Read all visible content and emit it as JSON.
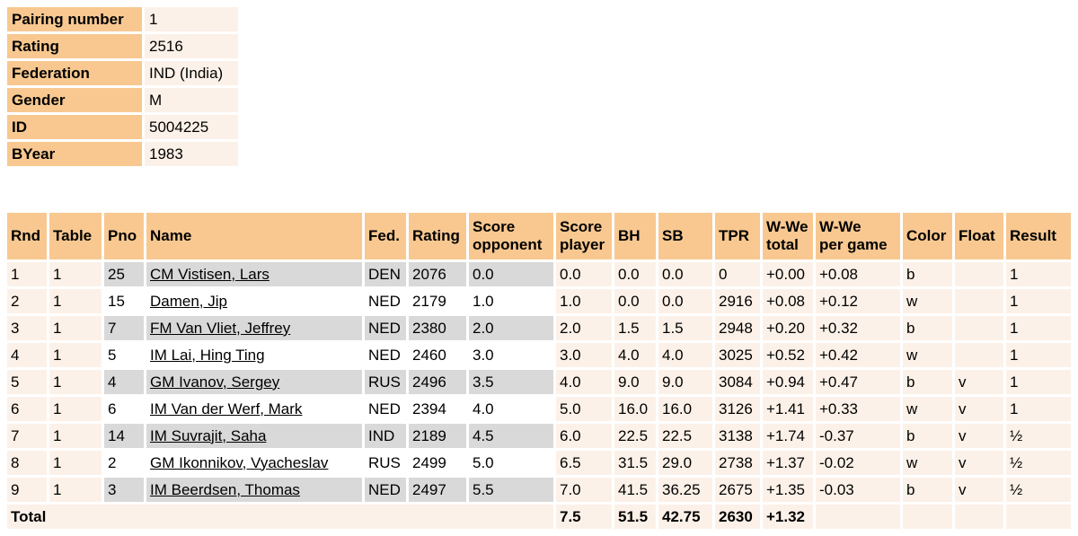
{
  "colors": {
    "header_bg": "#F8C890",
    "row_bg": "#FCF1E8",
    "alt_gray": "#D9D9D9",
    "page_bg": "#FFFFFF",
    "text": "#000000"
  },
  "player_info": {
    "rows": [
      {
        "label": "Pairing number",
        "value": "1"
      },
      {
        "label": "Rating",
        "value": "2516"
      },
      {
        "label": "Federation",
        "value": "IND (India)"
      },
      {
        "label": "Gender",
        "value": "M"
      },
      {
        "label": "ID",
        "value": "5004225"
      },
      {
        "label": "BYear",
        "value": "1983"
      }
    ]
  },
  "results_table": {
    "headers": {
      "rnd": "Rnd",
      "table": "Table",
      "pno": "Pno",
      "name": "Name",
      "fed": "Fed.",
      "rating": "Rating",
      "score_opponent": "Score\nopponent",
      "score_player": "Score\nplayer",
      "bh": "BH",
      "sb": "SB",
      "tpr": "TPR",
      "wwe_total": "W-We\ntotal",
      "wwe_per_game": "W-We\nper game",
      "color": "Color",
      "float": "Float",
      "result": "Result"
    },
    "rows": [
      {
        "rnd": "1",
        "table": "1",
        "pno": "25",
        "name": "CM Vistisen, Lars",
        "fed": "DEN",
        "rating": "2076",
        "score_opponent": "0.0",
        "score_player": "0.0",
        "bh": "0.0",
        "sb": "0.0",
        "tpr": "0",
        "wwe_total": "+0.00",
        "wwe_per_game": "+0.08",
        "color": "b",
        "float": "",
        "result": "1"
      },
      {
        "rnd": "2",
        "table": "1",
        "pno": "15",
        "name": "Damen, Jip",
        "fed": "NED",
        "rating": "2179",
        "score_opponent": "1.0",
        "score_player": "1.0",
        "bh": "0.0",
        "sb": "0.0",
        "tpr": "2916",
        "wwe_total": "+0.08",
        "wwe_per_game": "+0.12",
        "color": "w",
        "float": "",
        "result": "1"
      },
      {
        "rnd": "3",
        "table": "1",
        "pno": "7",
        "name": "FM Van Vliet, Jeffrey",
        "fed": "NED",
        "rating": "2380",
        "score_opponent": "2.0",
        "score_player": "2.0",
        "bh": "1.5",
        "sb": "1.5",
        "tpr": "2948",
        "wwe_total": "+0.20",
        "wwe_per_game": "+0.32",
        "color": "b",
        "float": "",
        "result": "1"
      },
      {
        "rnd": "4",
        "table": "1",
        "pno": "5",
        "name": "IM Lai, Hing Ting",
        "fed": "NED",
        "rating": "2460",
        "score_opponent": "3.0",
        "score_player": "3.0",
        "bh": "4.0",
        "sb": "4.0",
        "tpr": "3025",
        "wwe_total": "+0.52",
        "wwe_per_game": "+0.42",
        "color": "w",
        "float": "",
        "result": "1"
      },
      {
        "rnd": "5",
        "table": "1",
        "pno": "4",
        "name": "GM Ivanov, Sergey",
        "fed": "RUS",
        "rating": "2496",
        "score_opponent": "3.5",
        "score_player": "4.0",
        "bh": "9.0",
        "sb": "9.0",
        "tpr": "3084",
        "wwe_total": "+0.94",
        "wwe_per_game": "+0.47",
        "color": "b",
        "float": "v",
        "result": "1"
      },
      {
        "rnd": "6",
        "table": "1",
        "pno": "6",
        "name": "IM Van der Werf, Mark",
        "fed": "NED",
        "rating": "2394",
        "score_opponent": "4.0",
        "score_player": "5.0",
        "bh": "16.0",
        "sb": "16.0",
        "tpr": "3126",
        "wwe_total": "+1.41",
        "wwe_per_game": "+0.33",
        "color": "w",
        "float": "v",
        "result": "1"
      },
      {
        "rnd": "7",
        "table": "1",
        "pno": "14",
        "name": "IM Suvrajit, Saha",
        "fed": "IND",
        "rating": "2189",
        "score_opponent": "4.5",
        "score_player": "6.0",
        "bh": "22.5",
        "sb": "22.5",
        "tpr": "3138",
        "wwe_total": "+1.74",
        "wwe_per_game": "-0.37",
        "color": "b",
        "float": "v",
        "result": "½"
      },
      {
        "rnd": "8",
        "table": "1",
        "pno": "2",
        "name": "GM Ikonnikov, Vyacheslav",
        "fed": "RUS",
        "rating": "2499",
        "score_opponent": "5.0",
        "score_player": "6.5",
        "bh": "31.5",
        "sb": "29.0",
        "tpr": "2738",
        "wwe_total": "+1.37",
        "wwe_per_game": "-0.02",
        "color": "w",
        "float": "v",
        "result": "½"
      },
      {
        "rnd": "9",
        "table": "1",
        "pno": "3",
        "name": "IM Beerdsen, Thomas",
        "fed": "NED",
        "rating": "2497",
        "score_opponent": "5.5",
        "score_player": "7.0",
        "bh": "41.5",
        "sb": "36.25",
        "tpr": "2675",
        "wwe_total": "+1.35",
        "wwe_per_game": "-0.03",
        "color": "b",
        "float": "v",
        "result": "½"
      }
    ],
    "total": {
      "label": "Total",
      "score_player": "7.5",
      "bh": "51.5",
      "sb": "42.75",
      "tpr": "2630",
      "wwe_total": "+1.32",
      "wwe_per_game": "",
      "color": "",
      "float": "",
      "result": ""
    }
  }
}
